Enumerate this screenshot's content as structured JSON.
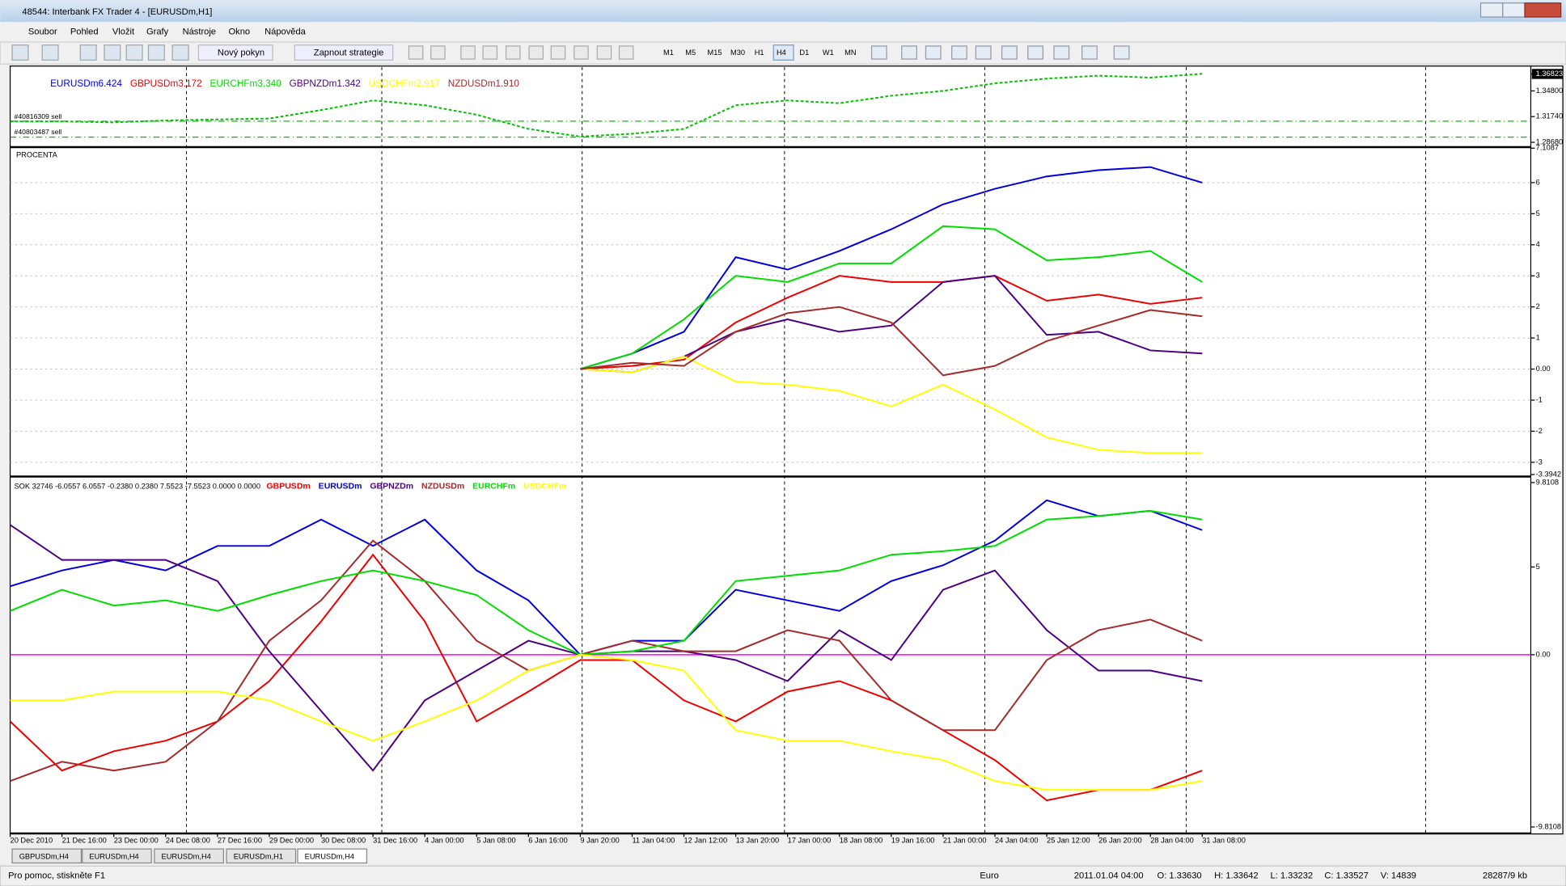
{
  "window": {
    "title": "48544: Interbank FX Trader 4 - [EURUSDm,H1]"
  },
  "menu": [
    "Soubor",
    "Pohled",
    "Vložit",
    "Grafy",
    "Nástroje",
    "Okno",
    "Nápověda"
  ],
  "toolbar": {
    "new_order": "Nový pokyn",
    "strategies": "Zapnout strategie",
    "timeframes": [
      "M1",
      "M5",
      "M15",
      "M30",
      "H1",
      "H4",
      "D1",
      "W1",
      "MN"
    ]
  },
  "chart_data": [
    {
      "type": "line",
      "color": "#00c000",
      "values": [
        1.3117,
        1.3117,
        1.3106,
        1.3129,
        1.314,
        1.3151,
        1.3253,
        1.3367,
        1.331,
        1.3197,
        1.3027,
        1.2936,
        1.297,
        1.3027,
        1.331,
        1.3367,
        1.3333,
        1.3423,
        1.348,
        1.3571,
        1.3627,
        1.3661,
        1.3639,
        1.3684
      ],
      "ylim": [
        1.2834,
        1.3752
      ],
      "yticks": [
        {
          "value": 1.36823,
          "label": "1.36823"
        },
        {
          "value": 1.348,
          "label": "1.34800"
        },
        {
          "value": 1.3174,
          "label": "1.31740"
        },
        {
          "value": 1.2868,
          "label": "1.28680"
        }
      ],
      "orders": [
        "#40816309 sell",
        "#40803487 sell"
      ]
    },
    {
      "type": "line",
      "title": "PROCENTA",
      "ylim": [
        -3.3942,
        7.1087
      ],
      "yticks": [
        7.1087,
        6,
        5,
        4,
        3,
        2,
        1,
        {
          "value": 0,
          "label": "0.00"
        },
        -1,
        -2,
        -3,
        -3.3942
      ],
      "grid": true,
      "series": [
        {
          "name": "EURUSDm6.424",
          "color": "#0000dd",
          "values": [
            null,
            null,
            null,
            null,
            null,
            null,
            null,
            null,
            null,
            null,
            null,
            0,
            0.5,
            1.2,
            3.6,
            3.2,
            3.8,
            4.5,
            5.3,
            5.8,
            6.2,
            6.4,
            6.5,
            6.0
          ]
        },
        {
          "name": "GBPUSDm3.172",
          "color": "#ee0000",
          "values": [
            null,
            null,
            null,
            null,
            null,
            null,
            null,
            null,
            null,
            null,
            null,
            0,
            0.1,
            0.3,
            1.5,
            2.3,
            3.0,
            2.8,
            2.8,
            3.0,
            2.2,
            2.4,
            2.1,
            2.3
          ]
        },
        {
          "name": "EURCHFm3.340",
          "color": "#00dd00",
          "values": [
            null,
            null,
            null,
            null,
            null,
            null,
            null,
            null,
            null,
            null,
            null,
            0,
            0.5,
            1.6,
            3.0,
            2.8,
            3.4,
            3.4,
            4.6,
            4.5,
            3.5,
            3.6,
            3.8,
            2.8
          ]
        },
        {
          "name": "GBPNZDm1.342",
          "color": "#4b0082",
          "values": [
            null,
            null,
            null,
            null,
            null,
            null,
            null,
            null,
            null,
            null,
            null,
            0,
            -0.1,
            0.4,
            1.2,
            1.6,
            1.2,
            1.4,
            2.8,
            3.0,
            1.1,
            1.2,
            0.6,
            0.5
          ]
        },
        {
          "name": "USDCHFm2.917",
          "color": "#ffff00",
          "values": [
            null,
            null,
            null,
            null,
            null,
            null,
            null,
            null,
            null,
            null,
            null,
            0,
            -0.1,
            0.4,
            -0.4,
            -0.5,
            -0.7,
            -1.2,
            -0.5,
            -1.3,
            -2.2,
            -2.6,
            -2.7,
            -2.7
          ]
        },
        {
          "name": "NZDUSDm1.910",
          "color": "#a52a2a",
          "values": [
            null,
            null,
            null,
            null,
            null,
            null,
            null,
            null,
            null,
            null,
            null,
            0,
            0.2,
            0.1,
            1.2,
            1.8,
            2.0,
            1.5,
            -0.2,
            0.1,
            0.9,
            1.4,
            1.9,
            1.7
          ]
        }
      ]
    },
    {
      "type": "line",
      "title": "SOK 32746 -6.0557 6.0557 -0.2380 0.2380 7.5523 -7.5523 0.0000 0.0000",
      "ylim": [
        -9.8108,
        9.8108
      ],
      "yticks": [
        9.8108,
        5,
        {
          "value": 0,
          "label": "0.00"
        },
        -9.8108
      ],
      "zero_line_color": "#ff00ff",
      "x": [
        "20 Dec 2010",
        "21 Dec 16:00",
        "23 Dec 00:00",
        "24 Dec 08:00",
        "27 Dec 16:00",
        "29 Dec 00:00",
        "30 Dec 08:00",
        "31 Dec 16:00",
        "4 Jan 00:00",
        "5 Jan 08:00",
        "6 Jan 16:00",
        "9 Jan 20:00",
        "11 Jan 04:00",
        "12 Jan 12:00",
        "13 Jan 20:00",
        "17 Jan 00:00",
        "18 Jan 08:00",
        "19 Jan 16:00",
        "21 Jan 00:00",
        "24 Jan 04:00",
        "25 Jan 12:00",
        "26 Jan 20:00",
        "28 Jan 04:00",
        "31 Jan 08:00"
      ],
      "series": [
        {
          "name": "GBPUSDm",
          "color": "#ee0000",
          "values": [
            -3.8,
            -6.6,
            -5.5,
            -4.9,
            -3.8,
            -1.5,
            1.9,
            5.7,
            1.9,
            -3.8,
            -2.1,
            -0.3,
            -0.3,
            -2.6,
            -3.8,
            -2.1,
            -1.5,
            -2.6,
            -4.3,
            -6.0,
            -8.3,
            -7.7,
            -7.7,
            -6.6
          ]
        },
        {
          "name": "EURUSDm",
          "color": "#0000dd",
          "values": [
            3.9,
            4.8,
            5.4,
            4.8,
            6.2,
            6.2,
            7.7,
            6.2,
            7.7,
            4.8,
            3.1,
            0,
            0.8,
            0.8,
            3.7,
            3.1,
            2.5,
            4.2,
            5.1,
            6.5,
            8.8,
            7.9,
            8.2,
            7.1
          ]
        },
        {
          "name": "GBPNZDm",
          "color": "#4b0082",
          "values": [
            7.4,
            5.4,
            5.4,
            5.4,
            4.2,
            0.2,
            -3.2,
            -6.6,
            -2.6,
            -0.9,
            0.8,
            0,
            0.2,
            0.2,
            -0.3,
            -1.5,
            1.4,
            -0.3,
            3.7,
            4.8,
            1.4,
            -0.9,
            -0.9,
            -1.5
          ]
        },
        {
          "name": "NZDUSDm",
          "color": "#a52a2a",
          "values": [
            -7.2,
            -6.1,
            -6.6,
            -6.1,
            -3.8,
            0.8,
            3.1,
            6.5,
            4.2,
            0.8,
            -0.9,
            0,
            0.8,
            0.2,
            0.2,
            1.4,
            0.8,
            -2.6,
            -4.3,
            -4.3,
            -0.3,
            1.4,
            2.0,
            0.8
          ]
        },
        {
          "name": "EURCHFm",
          "color": "#00dd00",
          "values": [
            2.5,
            3.7,
            2.8,
            3.1,
            2.5,
            3.4,
            4.2,
            4.8,
            4.2,
            3.4,
            1.4,
            0,
            0.2,
            0.8,
            4.2,
            4.5,
            4.8,
            5.7,
            5.9,
            6.2,
            7.7,
            7.9,
            8.2,
            7.7
          ]
        },
        {
          "name": "USDCHFm",
          "color": "#ffff00",
          "values": [
            -2.6,
            -2.6,
            -2.1,
            -2.1,
            -2.1,
            -2.6,
            -3.8,
            -4.9,
            -3.8,
            -2.6,
            -0.9,
            0,
            -0.3,
            -0.9,
            -4.3,
            -4.9,
            -4.9,
            -5.5,
            -6.0,
            -7.2,
            -7.7,
            -7.7,
            -7.7,
            -7.2
          ]
        }
      ]
    }
  ],
  "tabs": [
    "GBPUSDm,H4",
    "EURUSDm,H4",
    "EURUSDm,H4",
    "EURUSDm,H1",
    "EURUSDm,H4"
  ],
  "status": {
    "help": "Pro pomoc, stiskněte F1",
    "profile": "Euro",
    "time": "2011.01.04 04:00",
    "open": "O: 1.33630",
    "high": "H: 1.33642",
    "low": "L: 1.33232",
    "close": "C: 1.33527",
    "volume": "V: 14839",
    "traffic": "28287/9 kb"
  }
}
